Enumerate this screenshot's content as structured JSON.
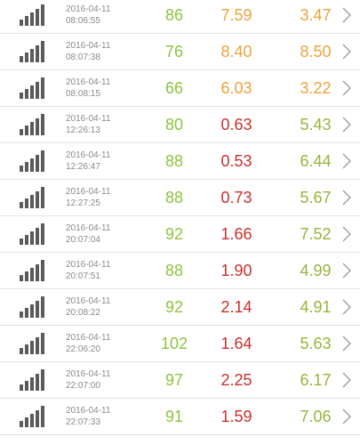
{
  "rows": [
    {
      "date": "2016-04-11",
      "time": "08:06:55",
      "v1": "86",
      "v2": "7.59",
      "v2_color": "orange",
      "v3": "3.47",
      "v3_color": "orange"
    },
    {
      "date": "2016-04-11",
      "time": "08:07:38",
      "v1": "76",
      "v2": "8.40",
      "v2_color": "orange",
      "v3": "8.50",
      "v3_color": "orange"
    },
    {
      "date": "2016-04-11",
      "time": "08:08:15",
      "v1": "66",
      "v2": "6.03",
      "v2_color": "orange",
      "v3": "3.22",
      "v3_color": "orange"
    },
    {
      "date": "2016-04-11",
      "time": "12:26:13",
      "v1": "80",
      "v2": "0.63",
      "v2_color": "red",
      "v3": "5.43",
      "v3_color": "green"
    },
    {
      "date": "2016-04-11",
      "time": "12:26:47",
      "v1": "88",
      "v2": "0.53",
      "v2_color": "red",
      "v3": "6.44",
      "v3_color": "green"
    },
    {
      "date": "2016-04-11",
      "time": "12:27:25",
      "v1": "88",
      "v2": "0.73",
      "v2_color": "red",
      "v3": "5.67",
      "v3_color": "green"
    },
    {
      "date": "2016-04-11",
      "time": "20:07:04",
      "v1": "92",
      "v2": "1.66",
      "v2_color": "red",
      "v3": "7.52",
      "v3_color": "green"
    },
    {
      "date": "2016-04-11",
      "time": "20:07:51",
      "v1": "88",
      "v2": "1.90",
      "v2_color": "red",
      "v3": "4.99",
      "v3_color": "green"
    },
    {
      "date": "2016-04-11",
      "time": "20:08:22",
      "v1": "92",
      "v2": "2.14",
      "v2_color": "red",
      "v3": "4.91",
      "v3_color": "green"
    },
    {
      "date": "2016-04-11",
      "time": "22:06:20",
      "v1": "102",
      "v2": "1.64",
      "v2_color": "red",
      "v3": "5.63",
      "v3_color": "green"
    },
    {
      "date": "2016-04-11",
      "time": "22:07:00",
      "v1": "97",
      "v2": "2.25",
      "v2_color": "red",
      "v3": "6.17",
      "v3_color": "green"
    },
    {
      "date": "2016-04-11",
      "time": "22:07:33",
      "v1": "91",
      "v2": "1.59",
      "v2_color": "red",
      "v3": "7.06",
      "v3_color": "green"
    }
  ],
  "icons": {
    "signal": "signal-bars-icon",
    "chevron": "chevron-right-icon"
  },
  "colors": {
    "value1": "#8cc43c",
    "orange": "#eba33b",
    "red": "#c9302c",
    "green": "#95b53a"
  }
}
